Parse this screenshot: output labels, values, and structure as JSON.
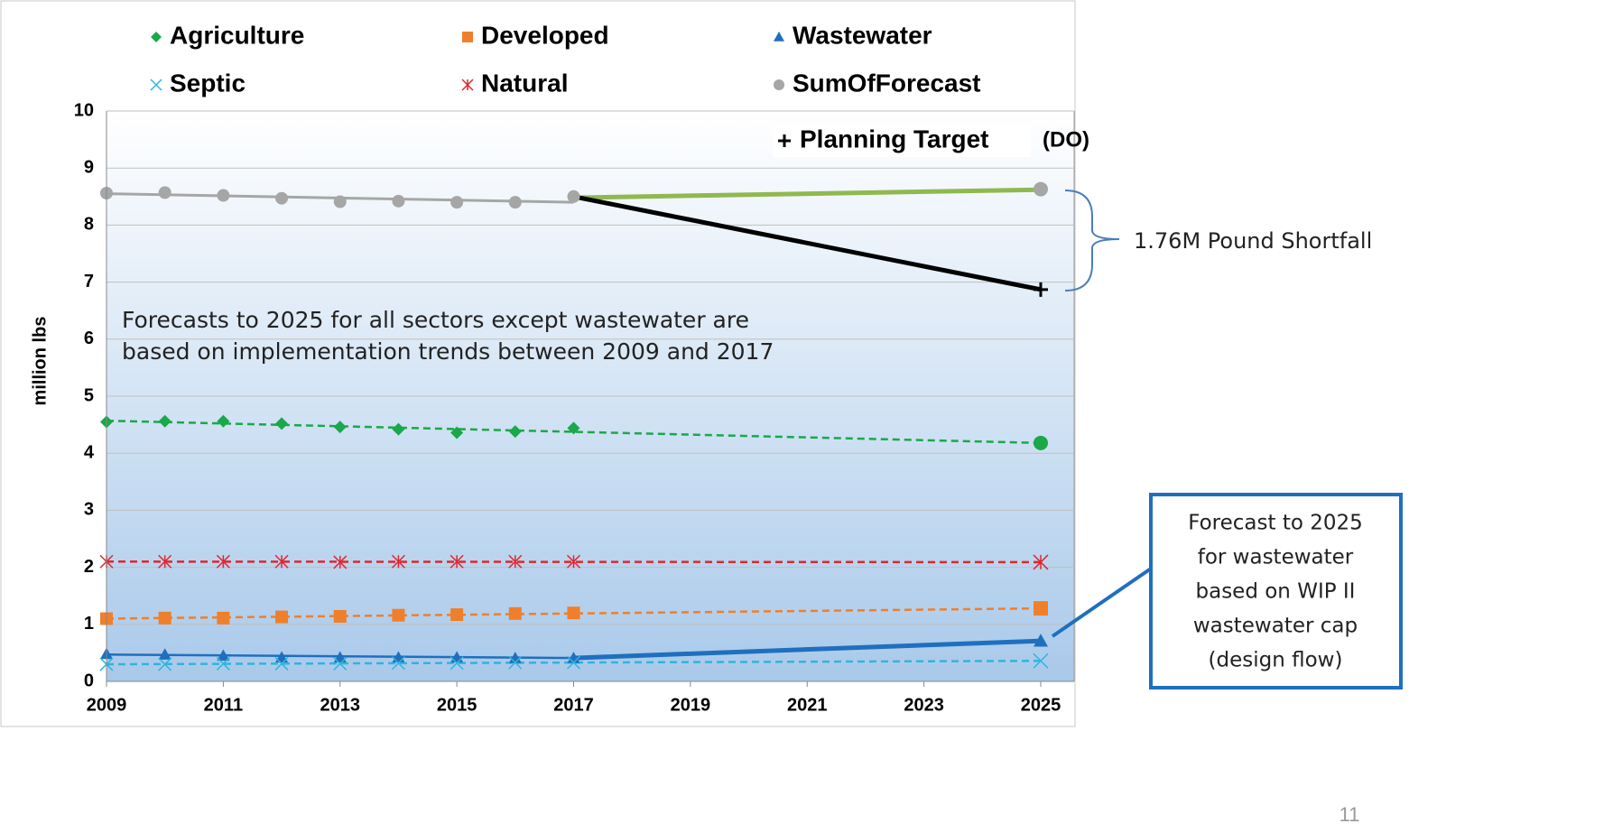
{
  "chart_data": {
    "type": "line",
    "y_label": "million lbs",
    "xlim": [
      2009,
      2025
    ],
    "xticks": [
      2009,
      2011,
      2013,
      2015,
      2017,
      2019,
      2021,
      2023,
      2025
    ],
    "ylim": [
      0,
      10
    ],
    "yticks": [
      0,
      1,
      2,
      3,
      4,
      5,
      6,
      7,
      8,
      9,
      10
    ],
    "grid": true,
    "series": [
      {
        "name": "Agriculture",
        "color": "#1aa84a",
        "marker": "diamond",
        "end_marker": "circle",
        "x": [
          2009,
          2010,
          2011,
          2012,
          2013,
          2014,
          2015,
          2016,
          2017,
          2025
        ],
        "values": [
          4.55,
          4.56,
          4.56,
          4.52,
          4.46,
          4.42,
          4.36,
          4.38,
          4.44,
          4.18
        ],
        "lines": [
          {
            "x": [
              2009,
              2025
            ],
            "values": [
              4.57,
              4.18
            ],
            "dash": true
          }
        ]
      },
      {
        "name": "Developed",
        "color": "#f07f2b",
        "marker": "square",
        "x": [
          2009,
          2010,
          2011,
          2012,
          2013,
          2014,
          2015,
          2016,
          2017,
          2025
        ],
        "values": [
          1.1,
          1.11,
          1.11,
          1.13,
          1.14,
          1.16,
          1.17,
          1.19,
          1.2,
          1.28
        ],
        "lines": [
          {
            "x": [
              2009,
              2025
            ],
            "values": [
              1.1,
              1.28
            ],
            "dash": true
          }
        ]
      },
      {
        "name": "Wastewater",
        "color": "#1f6fbf",
        "marker": "triangle",
        "x": [
          2009,
          2010,
          2011,
          2012,
          2013,
          2014,
          2015,
          2016,
          2017,
          2025
        ],
        "values": [
          0.48,
          0.47,
          0.45,
          0.42,
          0.42,
          0.42,
          0.42,
          0.41,
          0.41,
          0.71
        ],
        "lines": [
          {
            "x": [
              2009,
              2017
            ],
            "values": [
              0.47,
              0.41
            ],
            "dash": false,
            "width": 2.5
          },
          {
            "x": [
              2017,
              2025
            ],
            "values": [
              0.41,
              0.71
            ],
            "dash": false,
            "width": 5
          }
        ]
      },
      {
        "name": "Septic",
        "color": "#2fb5de",
        "marker": "x",
        "x": [
          2009,
          2010,
          2011,
          2012,
          2013,
          2014,
          2015,
          2016,
          2017,
          2025
        ],
        "values": [
          0.3,
          0.3,
          0.31,
          0.31,
          0.31,
          0.32,
          0.32,
          0.33,
          0.33,
          0.36
        ],
        "lines": [
          {
            "x": [
              2009,
              2025
            ],
            "values": [
              0.3,
              0.36
            ],
            "dash": true
          }
        ]
      },
      {
        "name": "Natural",
        "color": "#e0262e",
        "marker": "asterisk",
        "x": [
          2009,
          2010,
          2011,
          2012,
          2013,
          2014,
          2015,
          2016,
          2017,
          2025
        ],
        "values": [
          2.1,
          2.1,
          2.1,
          2.1,
          2.09,
          2.1,
          2.1,
          2.1,
          2.1,
          2.09
        ],
        "lines": [
          {
            "x": [
              2009,
              2025
            ],
            "values": [
              2.1,
              2.09
            ],
            "dash": true
          }
        ]
      },
      {
        "name": "SumOfForecast",
        "color": "#a6a6a6",
        "marker": "circle",
        "x": [
          2009,
          2010,
          2011,
          2012,
          2013,
          2014,
          2015,
          2016,
          2017,
          2025
        ],
        "values": [
          8.56,
          8.57,
          8.52,
          8.47,
          8.41,
          8.42,
          8.4,
          8.4,
          8.5,
          8.63
        ],
        "lines": [
          {
            "x": [
              2009,
              2017
            ],
            "values": [
              8.55,
              8.4
            ],
            "dash": false,
            "width": 3
          },
          {
            "x": [
              2017,
              2025
            ],
            "values": [
              8.48,
              8.62
            ],
            "dash": false,
            "width": 5,
            "color": "#8fb94f"
          }
        ]
      },
      {
        "name": "Planning Target",
        "color": "#000000",
        "marker": "plus",
        "x": [
          2025
        ],
        "values": [
          6.87
        ],
        "lines": [
          {
            "x": [
              2017,
              2025
            ],
            "values": [
              8.5,
              6.87
            ],
            "dash": false,
            "width": 5
          }
        ]
      }
    ],
    "legend_note": "(DO)",
    "annotations": {
      "trend_note": [
        "Forecasts to 2025 for all sectors except wastewater are",
        "based on implementation trends between 2009 and 2017"
      ],
      "shortfall": "1.76M Pound Shortfall",
      "wastewater_note": [
        "Forecast to 2025",
        "for wastewater",
        "based on WIP II",
        "wastewater cap",
        "(design flow)"
      ]
    },
    "page_number": "11"
  }
}
